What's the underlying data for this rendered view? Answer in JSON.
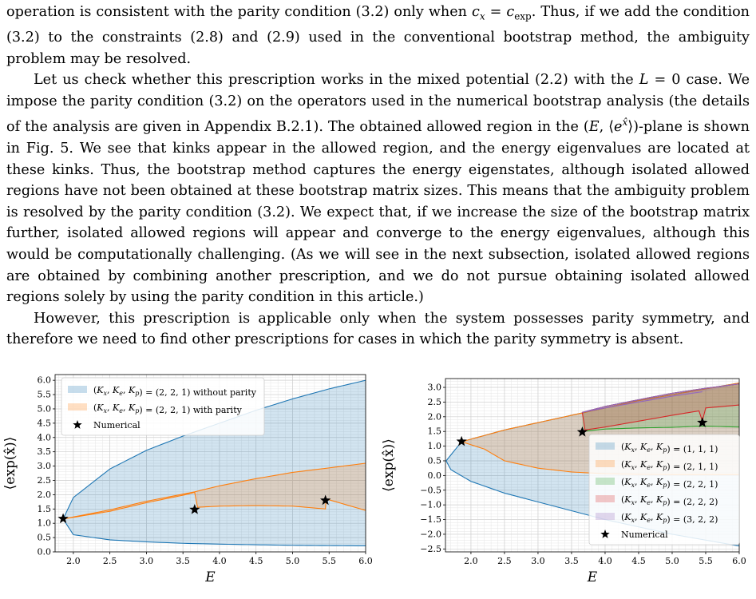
{
  "paragraphs": [
    "operation is consistent with the parity condition (3.2) only when c_x = c_exp. Thus, if we add the condition (3.2) to the constraints (2.8) and (2.9) used in the conventional bootstrap method, the ambiguity problem may be resolved.",
    "Let us check whether this prescription works in the mixed potential (2.2) with the L = 0 case. We impose the parity condition (3.2) on the operators used in the numerical bootstrap analysis (the details of the analysis are given in Appendix B.2.1). The obtained allowed region in the (E, ⟨e^x̂⟩)-plane is shown in Fig. 5. We see that kinks appear in the allowed region, and the energy eigenvalues are located at these kinks. Thus, the bootstrap method captures the energy eigenstates, although isolated allowed regions have not been obtained at these bootstrap matrix sizes. This means that the ambiguity problem is resolved by the parity condition (3.2). We expect that, if we increase the size of the bootstrap matrix further, isolated allowed regions will appear and converge to the energy eigenvalues, although this would be computationally challenging. (As we will see in the next subsection, isolated allowed regions are obtained by combining another prescription, and we do not pursue obtaining isolated allowed regions solely by using the parity condition in this article.)",
    "However, this prescription is applicable only when the system possesses parity symmetry, and therefore we need to find other prescriptions for cases in which the parity symmetry is absent."
  ],
  "chart_data": [
    {
      "type": "area",
      "xlabel": "E",
      "ylabel": "⟨exp(x̂)⟩",
      "xlim": [
        1.75,
        6.0
      ],
      "ylim": [
        0.0,
        6.2
      ],
      "xticks": [
        "2.0",
        "2.5",
        "3.0",
        "3.5",
        "4.0",
        "4.5",
        "5.0",
        "5.5",
        "6.0"
      ],
      "yticks": [
        "0.0",
        "0.5",
        "1.0",
        "1.5",
        "2.0",
        "2.5",
        "3.0",
        "3.5",
        "4.0",
        "4.5",
        "5.0",
        "5.5",
        "6.0"
      ],
      "grid": true,
      "legend_position": "top-left",
      "series": [
        {
          "name": "(K_x, K_e, K_p) = (2, 2, 1) without parity",
          "color": "#1f77b4",
          "upper": {
            "x": [
              1.86,
              2.0,
              2.5,
              3.0,
              3.5,
              4.0,
              4.5,
              5.0,
              5.5,
              6.0
            ],
            "y": [
              1.15,
              1.9,
              2.9,
              3.55,
              4.05,
              4.5,
              4.95,
              5.35,
              5.7,
              6.0
            ]
          },
          "lower": {
            "x": [
              1.86,
              2.0,
              2.5,
              3.0,
              3.5,
              4.0,
              4.5,
              5.0,
              5.5,
              6.0
            ],
            "y": [
              1.15,
              0.6,
              0.42,
              0.35,
              0.3,
              0.27,
              0.25,
              0.23,
              0.22,
              0.21
            ]
          }
        },
        {
          "name": "(K_x, K_e, K_p) = (2, 2, 1) with parity",
          "color": "#ff7f0e",
          "upper": {
            "x": [
              1.86,
              2.5,
              3.0,
              3.5,
              3.66,
              4.0,
              4.5,
              5.0,
              5.45,
              6.0
            ],
            "y": [
              1.15,
              1.47,
              1.77,
              2.02,
              2.1,
              2.31,
              2.56,
              2.78,
              2.92,
              3.1
            ]
          },
          "lower": {
            "x": [
              1.86,
              2.5,
              3.0,
              3.5,
              3.66,
              3.7,
              4.0,
              4.5,
              5.0,
              5.45,
              5.46,
              6.0
            ],
            "y": [
              1.15,
              1.42,
              1.72,
              1.98,
              2.08,
              1.56,
              1.6,
              1.62,
              1.6,
              1.5,
              1.85,
              1.45
            ]
          }
        }
      ],
      "points": {
        "name": "Numerical",
        "x": [
          1.86,
          3.66,
          5.45
        ],
        "y": [
          1.16,
          1.48,
          1.8
        ]
      }
    },
    {
      "type": "area",
      "xlabel": "E",
      "ylabel": "⟨exp(x̂)⟩",
      "xlim": [
        1.62,
        6.0
      ],
      "ylim": [
        -2.6,
        3.3
      ],
      "xticks": [
        "2.0",
        "2.5",
        "3.0",
        "3.5",
        "4.0",
        "4.5",
        "5.0",
        "5.5",
        "6.0"
      ],
      "yticks": [
        "3.0",
        "2.5",
        "2.0",
        "1.5",
        "1.0",
        "0.5",
        "0.0",
        "−0.5",
        "−1.0",
        "−1.5",
        "−2.0",
        "−2.5"
      ],
      "grid": true,
      "legend_position": "bottom-right",
      "series": [
        {
          "name": "(K_x, K_e, K_p) = (1, 1, 1)",
          "color": "#1f77b4",
          "upper": {
            "x": [
              1.63,
              1.86,
              2.5,
              3.0,
              3.5,
              4.0,
              4.5,
              5.0,
              5.5,
              6.0
            ],
            "y": [
              0.5,
              1.15,
              1.55,
              1.8,
              2.05,
              2.3,
              2.55,
              2.75,
              2.95,
              3.15
            ]
          },
          "lower": {
            "x": [
              1.63,
              1.7,
              2.0,
              2.5,
              3.0,
              3.5,
              4.0,
              4.5,
              5.0,
              5.5,
              6.0
            ],
            "y": [
              0.5,
              0.2,
              -0.2,
              -0.6,
              -0.9,
              -1.2,
              -1.5,
              -1.75,
              -2.0,
              -2.2,
              -2.4
            ]
          }
        },
        {
          "name": "(K_x, K_e, K_p) = (2, 1, 1)",
          "color": "#ff7f0e",
          "upper": {
            "x": [
              1.86,
              2.5,
              3.0,
              3.5,
              4.0,
              4.5,
              5.0,
              5.5,
              6.0
            ],
            "y": [
              1.15,
              1.55,
              1.8,
              2.05,
              2.3,
              2.55,
              2.75,
              2.95,
              3.15
            ]
          },
          "lower": {
            "x": [
              1.86,
              2.2,
              2.5,
              3.0,
              3.5,
              4.0,
              4.5,
              5.0,
              5.5,
              6.0
            ],
            "y": [
              1.15,
              0.9,
              0.5,
              0.25,
              0.12,
              0.06,
              0.04,
              0.03,
              0.03,
              0.03
            ]
          }
        },
        {
          "name": "(K_x, K_e, K_p) = (2, 2, 1)",
          "color": "#2ca02c",
          "upper": {
            "x": [
              3.66,
              4.0,
              4.5,
              5.0,
              5.5,
              6.0
            ],
            "y": [
              2.15,
              2.35,
              2.58,
              2.8,
              2.97,
              3.12
            ]
          },
          "lower": {
            "x": [
              3.66,
              4.0,
              4.5,
              5.0,
              5.45,
              6.0
            ],
            "y": [
              1.5,
              1.58,
              1.62,
              1.64,
              1.68,
              1.65
            ]
          }
        },
        {
          "name": "(K_x, K_e, K_p) = (2, 2, 2)",
          "color": "#d62728",
          "upper": {
            "x": [
              3.66,
              4.0,
              4.5,
              5.0,
              5.5,
              6.0
            ],
            "y": [
              2.15,
              2.35,
              2.58,
              2.8,
              2.97,
              3.12
            ]
          },
          "lower": {
            "x": [
              3.66,
              3.7,
              4.0,
              4.5,
              5.0,
              5.4,
              5.45,
              5.5,
              6.0
            ],
            "y": [
              2.15,
              1.55,
              1.65,
              1.85,
              2.05,
              2.2,
              1.85,
              2.3,
              2.4
            ]
          }
        },
        {
          "name": "(K_x, K_e, K_p) = (3, 2, 2)",
          "color": "#9467bd",
          "upper": {
            "x": [
              3.66,
              4.0,
              4.5,
              5.0,
              5.5,
              6.0
            ],
            "y": [
              2.15,
              2.35,
              2.58,
              2.8,
              2.97,
              3.12
            ]
          },
          "lower": {
            "x": [
              3.66,
              4.0,
              4.5,
              5.0,
              5.45
            ],
            "y": [
              2.15,
              2.3,
              2.5,
              2.7,
              2.85
            ]
          }
        }
      ],
      "points": {
        "name": "Numerical",
        "x": [
          1.86,
          3.66,
          5.45
        ],
        "y": [
          1.16,
          1.48,
          1.8
        ]
      }
    }
  ]
}
